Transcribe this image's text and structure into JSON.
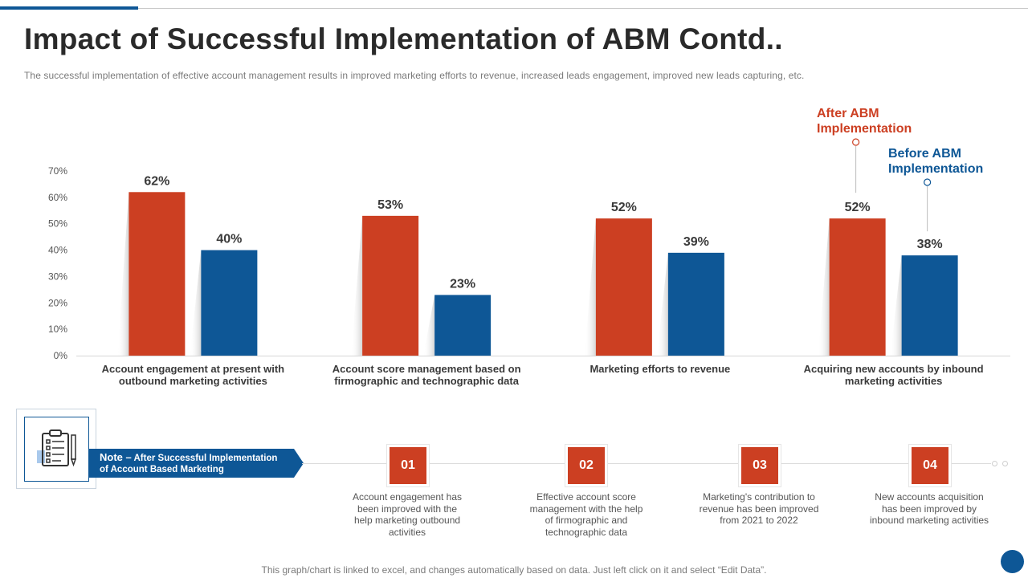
{
  "header": {
    "title": "Impact of Successful Implementation of ABM Contd..",
    "subtitle": "The successful implementation of effective  account management results in improved  marketing efforts to revenue,  increased leads engagement,  improved  new leads capturing, etc."
  },
  "colors": {
    "after": "#cc3f22",
    "before": "#0e5796",
    "axis_text": "#555555",
    "category_text": "#3a3a3a"
  },
  "chart_data": {
    "type": "bar",
    "title": "",
    "xlabel": "",
    "ylabel": "",
    "ylim": [
      0,
      70
    ],
    "yticks": [
      "0%",
      "10%",
      "20%",
      "30%",
      "40%",
      "50%",
      "60%",
      "70%"
    ],
    "ytick_values": [
      0,
      10,
      20,
      30,
      40,
      50,
      60,
      70
    ],
    "grid": false,
    "categories": [
      [
        "Account engagement at present with",
        "outbound marketing activities"
      ],
      [
        "Account score management based on",
        "firmographic and technographic data"
      ],
      [
        "Marketing efforts to revenue"
      ],
      [
        "Acquiring new accounts by inbound",
        "marketing activities"
      ]
    ],
    "series": [
      {
        "name": "After ABM Implementation",
        "name_lines": [
          "After ABM",
          "Implementation"
        ],
        "values": [
          62,
          53,
          52,
          52
        ],
        "labels": [
          "62%",
          "53%",
          "52%",
          "52%"
        ]
      },
      {
        "name": "Before ABM Implementation",
        "name_lines": [
          "Before ABM",
          "Implementation"
        ],
        "values": [
          40,
          23,
          39,
          38
        ],
        "labels": [
          "40%",
          "23%",
          "39%",
          "38%"
        ]
      }
    ]
  },
  "note": {
    "lead": "Note –",
    "line1": " After Successful Implementation",
    "line2": "of Account Based Marketing"
  },
  "steps": [
    {
      "number": "01",
      "description": "Account engagement has been improved with the help marketing outbound activities"
    },
    {
      "number": "02",
      "description": "Effective account score management with the help of firmographic and technographic data"
    },
    {
      "number": "03",
      "description": "Marketing's contribution to revenue has been improved from 2021 to 2022"
    },
    {
      "number": "04",
      "description": "New accounts acquisition has been improved by inbound marketing activities"
    }
  ],
  "footer": {
    "text": "This graph/chart is linked to excel,  and changes automatically based on data. Just left click on it and select “Edit Data”."
  }
}
